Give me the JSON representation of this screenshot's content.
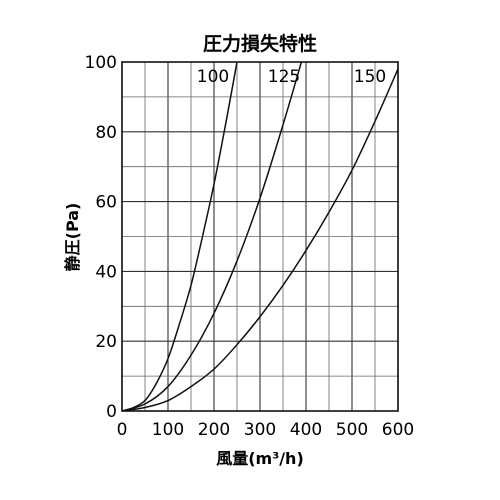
{
  "chart_data": {
    "type": "line",
    "title": "圧力損失特性",
    "xlabel": "風量(m³/h)",
    "ylabel": "静圧(Pa)",
    "xlim": [
      0,
      600
    ],
    "ylim": [
      0,
      100
    ],
    "x_ticks": [
      0,
      100,
      200,
      300,
      400,
      500,
      600
    ],
    "y_ticks": [
      0,
      20,
      40,
      60,
      80,
      100
    ],
    "grid": true,
    "series": [
      {
        "name": "100",
        "x": [
          0,
          25,
          50,
          75,
          100,
          125,
          150,
          175,
          200,
          225,
          250
        ],
        "y": [
          0,
          1,
          3,
          8,
          15,
          25,
          36,
          50,
          65,
          82,
          100
        ]
      },
      {
        "name": "125",
        "x": [
          0,
          50,
          100,
          150,
          200,
          250,
          300,
          350,
          390
        ],
        "y": [
          0,
          2,
          7,
          16,
          28,
          43,
          61,
          82,
          100
        ]
      },
      {
        "name": "150",
        "x": [
          0,
          50,
          100,
          150,
          200,
          250,
          300,
          350,
          400,
          450,
          500,
          550,
          600
        ],
        "y": [
          0,
          1,
          3,
          7,
          12,
          19,
          27,
          36,
          46,
          57,
          69,
          83,
          98
        ]
      }
    ]
  }
}
